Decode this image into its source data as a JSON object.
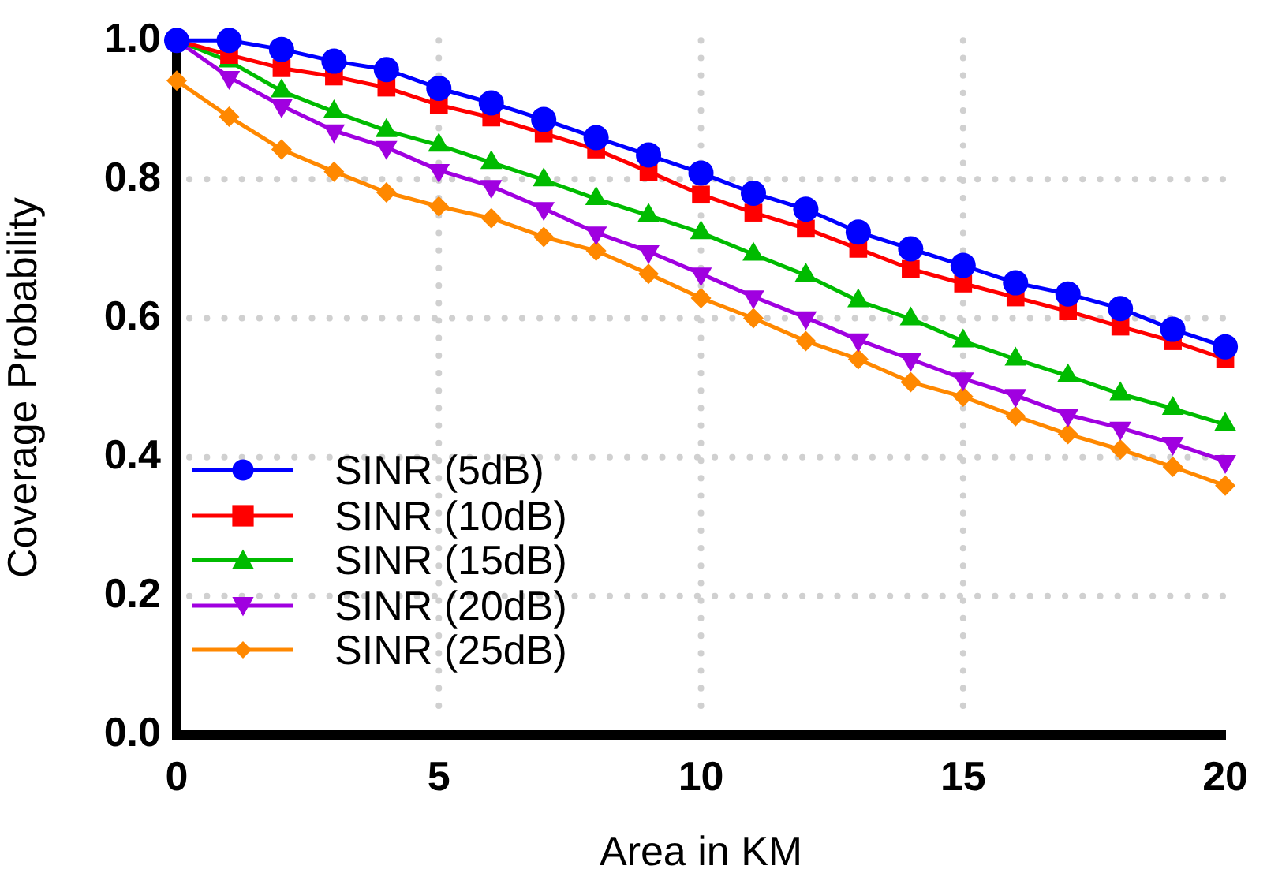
{
  "chart_data": {
    "type": "line",
    "xlabel": "Area in KM",
    "ylabel": "Coverage Probability",
    "x": [
      0,
      1,
      2,
      3,
      4,
      5,
      6,
      7,
      8,
      9,
      10,
      11,
      12,
      13,
      14,
      15,
      16,
      17,
      18,
      19,
      20
    ],
    "xlim": [
      0,
      20
    ],
    "xticks": [
      0,
      5,
      10,
      15,
      20
    ],
    "ylim": [
      0,
      1
    ],
    "yticks": [
      {
        "value": 0,
        "label": "0.0"
      },
      0.2,
      0.4,
      0.6,
      0.8,
      {
        "value": 1,
        "label": "1.0"
      }
    ],
    "grid": true,
    "legend": "bottom left",
    "line_style": "solid",
    "series": [
      {
        "name": "SINR (5dB)",
        "color": "#0000ff",
        "marker": "circle",
        "values": [
          1.0,
          1.0,
          0.987,
          0.97,
          0.958,
          0.931,
          0.91,
          0.886,
          0.86,
          0.835,
          0.809,
          0.78,
          0.757,
          0.724,
          0.7,
          0.676,
          0.651,
          0.635,
          0.614,
          0.584,
          0.559
        ]
      },
      {
        "name": "SINR (10dB)",
        "color": "#ff0000",
        "marker": "square",
        "values": [
          1.0,
          0.979,
          0.96,
          0.948,
          0.932,
          0.907,
          0.889,
          0.866,
          0.843,
          0.811,
          0.778,
          0.752,
          0.729,
          0.7,
          0.671,
          0.65,
          0.63,
          0.61,
          0.588,
          0.567,
          0.541
        ]
      },
      {
        "name": "SINR (15dB)",
        "color": "#00bb00",
        "marker": "triangle",
        "values": [
          1.0,
          0.97,
          0.927,
          0.897,
          0.87,
          0.849,
          0.824,
          0.799,
          0.772,
          0.748,
          0.723,
          0.692,
          0.662,
          0.625,
          0.599,
          0.567,
          0.541,
          0.517,
          0.491,
          0.47,
          0.447
        ]
      },
      {
        "name": "SINR (20dB)",
        "color": "#a000e0",
        "marker": "triangle_down",
        "values": [
          1.0,
          0.947,
          0.906,
          0.87,
          0.846,
          0.813,
          0.79,
          0.758,
          0.723,
          0.696,
          0.664,
          0.631,
          0.601,
          0.569,
          0.541,
          0.513,
          0.489,
          0.461,
          0.442,
          0.42,
          0.394
        ]
      },
      {
        "name": "SINR (25dB)",
        "color": "#ff8800",
        "marker": "diamond",
        "values": [
          0.942,
          0.89,
          0.843,
          0.811,
          0.781,
          0.761,
          0.744,
          0.717,
          0.697,
          0.664,
          0.629,
          0.6,
          0.567,
          0.541,
          0.508,
          0.487,
          0.459,
          0.433,
          0.411,
          0.386,
          0.359
        ]
      }
    ]
  }
}
